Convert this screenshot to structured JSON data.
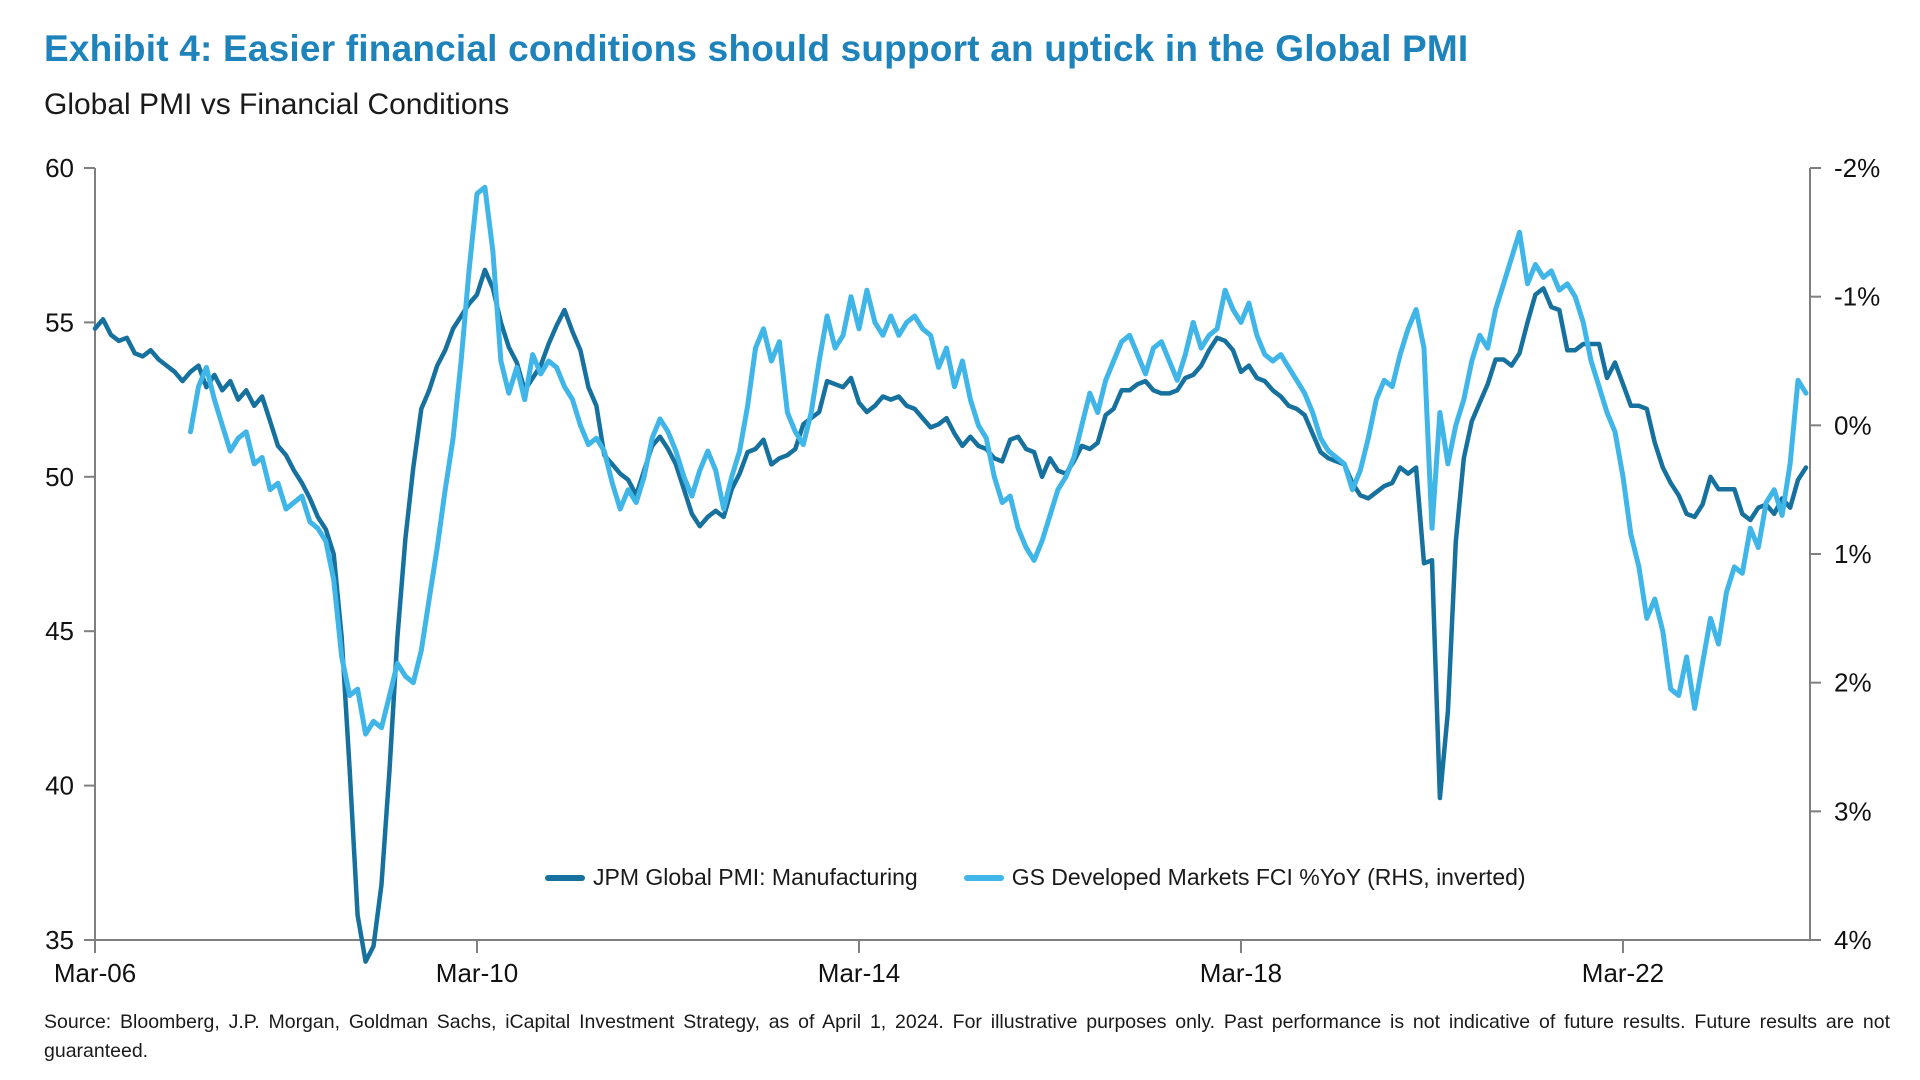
{
  "header": {
    "title": "Exhibit 4: Easier financial conditions should support an uptick in the Global PMI",
    "subtitle": "Global PMI vs Financial Conditions"
  },
  "source_note": "Source: Bloomberg, J.P. Morgan, Goldman Sachs, iCapital Investment Strategy, as of April 1, 2024. For illustrative purposes only. Past performance is not indicative of future results. Future results are not guaranteed.",
  "colors": {
    "title_blue": "#1d83ba",
    "pmi_line": "#16719e",
    "fci_line": "#3fb5e8",
    "axis_gray": "#7f7f7f",
    "label_text": "#111111"
  },
  "legend": {
    "items": [
      {
        "label": "JPM Global PMI: Manufacturing",
        "color": "#16719e"
      },
      {
        "label": "GS Developed Markets FCI %YoY (RHS, inverted)",
        "color": "#3fb5e8"
      }
    ]
  },
  "chart_data": {
    "type": "line",
    "title": "Global PMI vs Financial Conditions",
    "x_start": "2006-03",
    "x_end": "2024-02",
    "frequency": "monthly",
    "x_axis": {
      "ticks": [
        {
          "label": "Mar-06",
          "index": 0
        },
        {
          "label": "Mar-10",
          "index": 48
        },
        {
          "label": "Mar-14",
          "index": 96
        },
        {
          "label": "Mar-18",
          "index": 144
        },
        {
          "label": "Mar-22",
          "index": 192
        }
      ]
    },
    "left_axis": {
      "min": 35,
      "max": 60,
      "tick_labels": [
        "60",
        "55",
        "50",
        "45",
        "40",
        "35"
      ],
      "tick_values": [
        60,
        55,
        50,
        45,
        40,
        35
      ]
    },
    "right_axis": {
      "min": -2,
      "max": 4,
      "inverted": true,
      "tick_labels": [
        "-2%",
        "-1%",
        "0%",
        "1%",
        "2%",
        "3%",
        "4%"
      ],
      "tick_values": [
        -2,
        -1,
        0,
        1,
        2,
        3,
        4
      ]
    },
    "grid": false,
    "legend_position": "bottom-center-inside",
    "series": [
      {
        "name": "JPM Global PMI: Manufacturing",
        "axis": "left",
        "color": "#16719e",
        "values": [
          54.8,
          55.1,
          54.6,
          54.4,
          54.5,
          54.0,
          53.9,
          54.1,
          53.8,
          53.6,
          53.4,
          53.1,
          53.4,
          53.6,
          52.9,
          53.3,
          52.8,
          53.1,
          52.5,
          52.8,
          52.3,
          52.6,
          51.8,
          51.0,
          50.7,
          50.2,
          49.8,
          49.3,
          48.7,
          48.3,
          47.5,
          44.8,
          40.5,
          35.8,
          34.3,
          34.8,
          36.8,
          40.5,
          44.8,
          48.0,
          50.3,
          52.2,
          52.8,
          53.6,
          54.1,
          54.8,
          55.2,
          55.6,
          55.9,
          56.7,
          56.1,
          55.0,
          54.2,
          53.7,
          52.8,
          53.2,
          53.6,
          54.3,
          54.9,
          55.4,
          54.7,
          54.1,
          52.9,
          52.3,
          50.7,
          50.4,
          50.1,
          49.9,
          49.4,
          50.2,
          51.0,
          51.3,
          50.9,
          50.4,
          49.6,
          48.8,
          48.4,
          48.7,
          48.9,
          48.7,
          49.6,
          50.1,
          50.8,
          50.9,
          51.2,
          50.4,
          50.6,
          50.7,
          50.9,
          51.7,
          51.9,
          52.1,
          53.1,
          53.0,
          52.9,
          53.2,
          52.4,
          52.1,
          52.3,
          52.6,
          52.5,
          52.6,
          52.3,
          52.2,
          51.9,
          51.6,
          51.7,
          51.9,
          51.4,
          51.0,
          51.3,
          51.0,
          50.9,
          50.6,
          50.5,
          51.2,
          51.3,
          50.9,
          50.8,
          50.0,
          50.6,
          50.2,
          50.1,
          50.5,
          51.0,
          50.9,
          51.1,
          52.0,
          52.2,
          52.8,
          52.8,
          53.0,
          53.1,
          52.8,
          52.7,
          52.7,
          52.8,
          53.2,
          53.3,
          53.6,
          54.1,
          54.5,
          54.4,
          54.1,
          53.4,
          53.6,
          53.2,
          53.1,
          52.8,
          52.6,
          52.3,
          52.2,
          52.0,
          51.4,
          50.8,
          50.6,
          50.5,
          50.4,
          49.8,
          49.4,
          49.3,
          49.5,
          49.7,
          49.8,
          50.3,
          50.1,
          50.3,
          47.2,
          47.3,
          39.6,
          42.4,
          47.9,
          50.6,
          51.8,
          52.4,
          53.0,
          53.8,
          53.8,
          53.6,
          54.0,
          55.0,
          55.9,
          56.1,
          55.5,
          55.4,
          54.1,
          54.1,
          54.3,
          54.3,
          54.3,
          53.2,
          53.7,
          53.0,
          52.3,
          52.3,
          52.2,
          51.1,
          50.3,
          49.8,
          49.4,
          48.8,
          48.7,
          49.1,
          50.0,
          49.6,
          49.6,
          49.6,
          48.8,
          48.6,
          49.0,
          49.1,
          48.8,
          49.3,
          49.0,
          49.9,
          50.3
        ]
      },
      {
        "name": "GS Developed Markets FCI %YoY (RHS, inverted)",
        "axis": "right",
        "color": "#3fb5e8",
        "values": [
          null,
          null,
          null,
          null,
          null,
          null,
          null,
          null,
          null,
          null,
          null,
          null,
          0.05,
          -0.3,
          -0.45,
          -0.2,
          0.0,
          0.2,
          0.1,
          0.05,
          0.3,
          0.25,
          0.5,
          0.45,
          0.65,
          0.6,
          0.55,
          0.75,
          0.8,
          0.9,
          1.2,
          1.8,
          2.1,
          2.05,
          2.4,
          2.3,
          2.35,
          2.1,
          1.85,
          1.95,
          2.0,
          1.75,
          1.35,
          0.95,
          0.5,
          0.1,
          -0.5,
          -1.2,
          -1.8,
          -1.85,
          -1.35,
          -0.5,
          -0.25,
          -0.45,
          -0.2,
          -0.55,
          -0.4,
          -0.5,
          -0.45,
          -0.3,
          -0.2,
          0.0,
          0.15,
          0.1,
          0.2,
          0.45,
          0.65,
          0.5,
          0.6,
          0.4,
          0.1,
          -0.05,
          0.05,
          0.2,
          0.4,
          0.55,
          0.35,
          0.2,
          0.35,
          0.65,
          0.4,
          0.2,
          -0.15,
          -0.6,
          -0.75,
          -0.5,
          -0.65,
          -0.1,
          0.05,
          0.15,
          -0.1,
          -0.5,
          -0.85,
          -0.6,
          -0.7,
          -1.0,
          -0.75,
          -1.05,
          -0.8,
          -0.7,
          -0.85,
          -0.7,
          -0.8,
          -0.85,
          -0.75,
          -0.7,
          -0.45,
          -0.6,
          -0.3,
          -0.5,
          -0.2,
          0.0,
          0.1,
          0.4,
          0.6,
          0.55,
          0.8,
          0.95,
          1.05,
          0.9,
          0.7,
          0.5,
          0.4,
          0.25,
          0.0,
          -0.25,
          -0.1,
          -0.35,
          -0.5,
          -0.65,
          -0.7,
          -0.55,
          -0.4,
          -0.6,
          -0.65,
          -0.5,
          -0.35,
          -0.55,
          -0.8,
          -0.6,
          -0.7,
          -0.75,
          -1.05,
          -0.9,
          -0.8,
          -0.95,
          -0.7,
          -0.55,
          -0.5,
          -0.55,
          -0.45,
          -0.35,
          -0.25,
          -0.1,
          0.1,
          0.2,
          0.25,
          0.3,
          0.5,
          0.35,
          0.1,
          -0.2,
          -0.35,
          -0.3,
          -0.55,
          -0.75,
          -0.9,
          -0.6,
          0.8,
          -0.1,
          0.3,
          0.0,
          -0.2,
          -0.5,
          -0.7,
          -0.6,
          -0.9,
          -1.1,
          -1.3,
          -1.5,
          -1.1,
          -1.25,
          -1.15,
          -1.2,
          -1.05,
          -1.1,
          -1.0,
          -0.8,
          -0.5,
          -0.3,
          -0.1,
          0.05,
          0.4,
          0.85,
          1.1,
          1.5,
          1.35,
          1.6,
          2.05,
          2.1,
          1.8,
          2.2,
          1.85,
          1.5,
          1.7,
          1.3,
          1.1,
          1.15,
          0.8,
          0.95,
          0.6,
          0.5,
          0.7,
          0.3,
          -0.35,
          -0.25
        ]
      }
    ]
  }
}
